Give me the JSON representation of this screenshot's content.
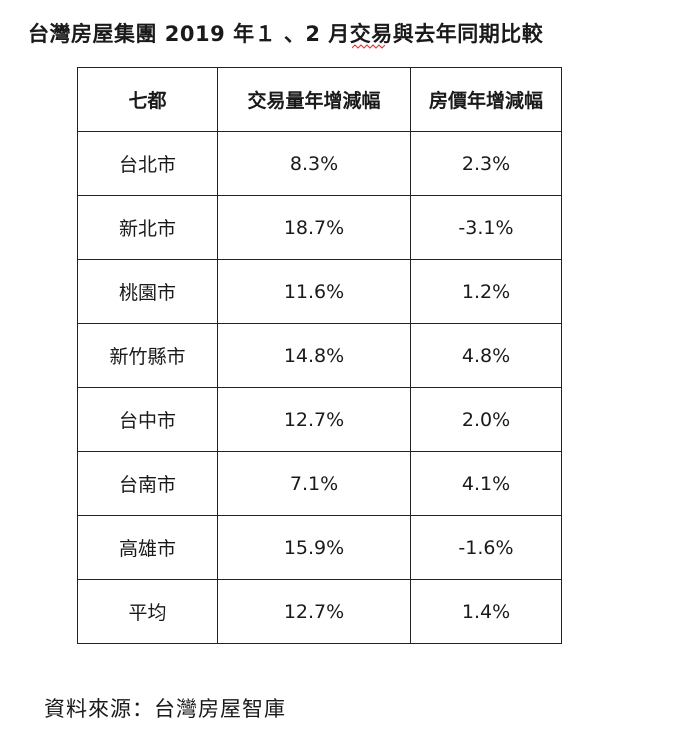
{
  "title": "台灣房屋集團 2019 年１ 、2 月交易與去年同期比較",
  "table": {
    "headers": [
      "七都",
      "交易量年增減幅",
      "房價年增減幅"
    ],
    "rows": [
      [
        "台北市",
        "8.3%",
        "2.3%"
      ],
      [
        "新北市",
        "18.7%",
        "-3.1%"
      ],
      [
        "桃園市",
        "11.6%",
        "1.2%"
      ],
      [
        "新竹縣市",
        "14.8%",
        "4.8%"
      ],
      [
        "台中市",
        "12.7%",
        "2.0%"
      ],
      [
        "台南市",
        "7.1%",
        "4.1%"
      ],
      [
        "高雄市",
        "15.9%",
        "-1.6%"
      ],
      [
        "平均",
        "12.7%",
        "1.4%"
      ]
    ]
  },
  "source": "資料來源：台灣房屋智庫",
  "colors": {
    "text": "#1a1a1a",
    "border": "#222222",
    "squiggle": "#e03030"
  }
}
